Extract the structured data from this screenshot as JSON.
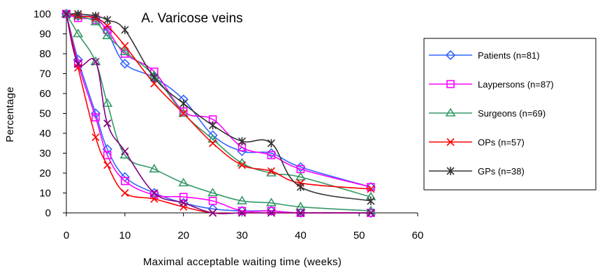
{
  "chart_data": {
    "type": "line",
    "title": "A. Varicose veins",
    "xlabel": "Maximal acceptable waiting time (weeks)",
    "ylabel": "Percentage",
    "xlim": [
      0,
      60
    ],
    "ylim": [
      0,
      100
    ],
    "xticks": [
      0,
      10,
      20,
      30,
      40,
      50,
      60
    ],
    "yticks": [
      0,
      10,
      20,
      30,
      40,
      50,
      60,
      70,
      80,
      90,
      100
    ],
    "grid": false,
    "legend_position": "right",
    "series": [
      {
        "name": "Patients (n=81)",
        "color": "#3366ff",
        "marker": "diamond",
        "x": [
          0,
          2,
          5,
          7,
          10,
          15,
          20,
          25,
          30,
          35,
          40,
          52
        ],
        "y": [
          100,
          99,
          98,
          91,
          75,
          68,
          57,
          39,
          31,
          30,
          23,
          13
        ]
      },
      {
        "name": "Laypersons (n=87)",
        "color": "#ff00ff",
        "marker": "square",
        "x": [
          0,
          2,
          5,
          7,
          10,
          15,
          20,
          25,
          30,
          35,
          40,
          52
        ],
        "y": [
          100,
          98,
          97,
          92,
          80,
          71,
          51,
          47,
          33,
          29,
          22,
          13
        ]
      },
      {
        "name": "Surgeons (n=69)",
        "color": "#339966",
        "marker": "triangle",
        "x": [
          0,
          2,
          5,
          7,
          10,
          15,
          20,
          25,
          30,
          35,
          40,
          52
        ],
        "y": [
          100,
          99,
          96,
          89,
          81,
          69,
          50,
          37,
          25,
          20,
          18,
          8
        ]
      },
      {
        "name": "OPs (n=57)",
        "color": "#ff0000",
        "marker": "x",
        "x": [
          0,
          2,
          5,
          7,
          10,
          15,
          20,
          25,
          30,
          35,
          40,
          52
        ],
        "y": [
          100,
          99,
          98,
          94,
          84,
          65,
          50,
          35,
          24,
          21,
          15,
          12
        ]
      },
      {
        "name": "GPs (n=38)",
        "color": "#333333",
        "marker": "asterisk",
        "x": [
          0,
          2,
          5,
          7,
          10,
          15,
          20,
          25,
          30,
          35,
          40,
          52
        ],
        "y": [
          100,
          100,
          99,
          97,
          92,
          68,
          55,
          44,
          36,
          35,
          13,
          6
        ]
      },
      {
        "name": "",
        "color": "#3366ff",
        "marker": "diamond",
        "legend": false,
        "x": [
          0,
          2,
          5,
          7,
          10,
          15,
          20,
          25,
          30,
          35,
          40,
          52
        ],
        "y": [
          100,
          77,
          50,
          32,
          18,
          10,
          5,
          2,
          1,
          1,
          0,
          0
        ]
      },
      {
        "name": "",
        "color": "#ff00ff",
        "marker": "square",
        "legend": false,
        "x": [
          0,
          2,
          5,
          7,
          10,
          15,
          20,
          25,
          30,
          35,
          40,
          52
        ],
        "y": [
          100,
          75,
          48,
          29,
          16,
          9,
          8,
          6,
          1,
          1,
          0,
          0
        ]
      },
      {
        "name": "",
        "color": "#339966",
        "marker": "triangle",
        "legend": false,
        "x": [
          0,
          2,
          5,
          7,
          10,
          15,
          20,
          25,
          30,
          35,
          40,
          52
        ],
        "y": [
          100,
          90,
          76,
          55,
          29,
          22,
          15,
          10,
          6,
          5,
          3,
          1
        ]
      },
      {
        "name": "",
        "color": "#ff0000",
        "marker": "x",
        "legend": false,
        "x": [
          0,
          2,
          5,
          7,
          10,
          15,
          20,
          25,
          30,
          35,
          40,
          52
        ],
        "y": [
          100,
          73,
          38,
          24,
          10,
          7,
          3,
          0,
          0,
          0,
          0,
          0
        ]
      },
      {
        "name": "",
        "color": "#800080",
        "marker": "x",
        "legend": false,
        "x": [
          0,
          2,
          5,
          7,
          10,
          15,
          20,
          25,
          30,
          35,
          40,
          52
        ],
        "y": [
          100,
          75,
          76,
          45,
          31,
          10,
          5,
          0,
          0,
          0,
          0,
          0
        ]
      }
    ]
  }
}
